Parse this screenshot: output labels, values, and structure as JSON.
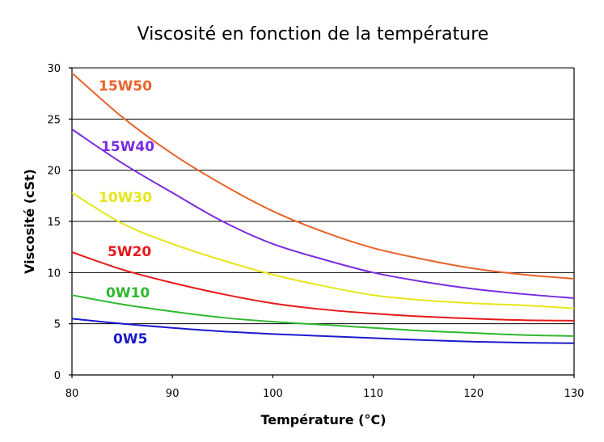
{
  "chart_data": {
    "type": "line",
    "title": "Viscosité en fonction de la température",
    "xlabel": "Température (°C)",
    "ylabel": "Viscosité (cSt)",
    "xlim": [
      80,
      130
    ],
    "ylim": [
      0,
      30
    ],
    "x_ticks": [
      80,
      90,
      100,
      110,
      120,
      130
    ],
    "y_ticks": [
      0,
      5,
      10,
      15,
      20,
      25,
      30
    ],
    "grid": "horizontal",
    "x": [
      80,
      85,
      90,
      95,
      100,
      105,
      110,
      115,
      120,
      125,
      130
    ],
    "series": [
      {
        "name": "15W50",
        "color": "#e8632a",
        "values": [
          29.5,
          25.2,
          21.6,
          18.6,
          16.0,
          14.0,
          12.4,
          11.3,
          10.4,
          9.8,
          9.4
        ]
      },
      {
        "name": "15W40",
        "color": "#7a2be0",
        "values": [
          24.0,
          20.7,
          17.8,
          15.0,
          12.8,
          11.3,
          10.0,
          9.1,
          8.4,
          7.9,
          7.5
        ]
      },
      {
        "name": "10W30",
        "color": "#e6e61a",
        "values": [
          17.8,
          14.8,
          12.8,
          11.2,
          9.8,
          8.7,
          7.8,
          7.3,
          7.0,
          6.8,
          6.5
        ]
      },
      {
        "name": "5W20",
        "color": "#e81818",
        "values": [
          12.0,
          10.3,
          9.0,
          7.9,
          7.0,
          6.4,
          6.0,
          5.7,
          5.5,
          5.35,
          5.3
        ]
      },
      {
        "name": "0W10",
        "color": "#2eb82e",
        "values": [
          7.8,
          6.9,
          6.2,
          5.6,
          5.2,
          4.9,
          4.6,
          4.3,
          4.1,
          3.9,
          3.8
        ]
      },
      {
        "name": "0W5",
        "color": "#1a1acc",
        "values": [
          5.5,
          5.0,
          4.6,
          4.25,
          4.0,
          3.8,
          3.6,
          3.4,
          3.25,
          3.15,
          3.1
        ]
      }
    ]
  }
}
